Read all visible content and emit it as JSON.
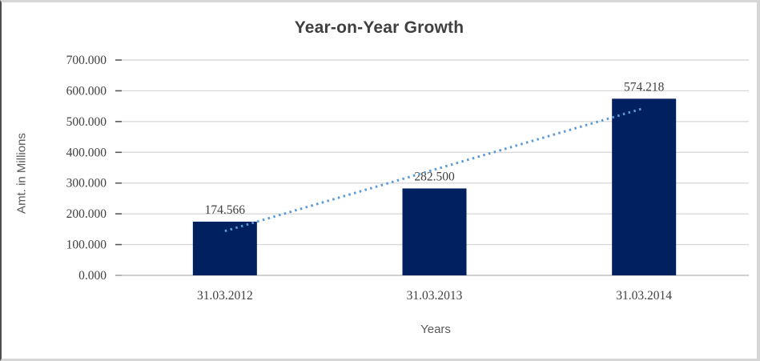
{
  "window": {
    "frame_border_color": "#d6d6d6",
    "left_edge_color": "#4d4d4d",
    "background": "#ffffff"
  },
  "chart_data": {
    "type": "bar",
    "title": "Year-on-Year Growth",
    "categories": [
      "31.03.2012",
      "31.03.2013",
      "31.03.2014"
    ],
    "values": [
      174.566,
      282.5,
      574.218
    ],
    "data_labels": [
      "174.566",
      "282.500",
      "574.218"
    ],
    "xlabel": "Years",
    "ylabel": "Amt. in Millions",
    "ylim": [
      0,
      700
    ],
    "ytick_interval": 100,
    "ytick_labels": [
      "0.000",
      "100.000",
      "200.000",
      "300.000",
      "400.000",
      "500.000",
      "600.000",
      "700.000"
    ],
    "grid": true,
    "legend": "none",
    "bar_color": "#002060",
    "text_color": "#404040",
    "gridline_color": "#d9d9d9",
    "axis_line_color": "#bfbfbf",
    "tick_color": "#595959",
    "trendline": {
      "type": "linear",
      "style": "dotted",
      "color": "#5b9bd5",
      "fit_values_at_first_last_category": [
        143.93,
        543.59
      ]
    }
  }
}
